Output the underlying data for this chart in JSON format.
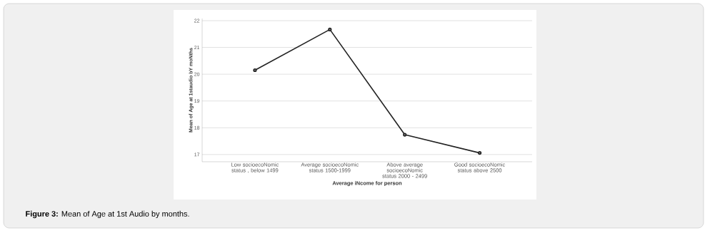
{
  "chart_data": {
    "type": "line",
    "xlabel": "Average iNcome for person",
    "ylabel": "Mean of Age at 1staudio bY moNths",
    "categories": [
      "Low socioecoNomic status , below 1499",
      "Average socioecoNomic status 1500-1999",
      "Above average socioecoNomic status 2000 - 2499",
      "Good socioecoNomic status above 2500"
    ],
    "series": [
      {
        "color": "#222222",
        "values": [
          20.15,
          21.67,
          17.74,
          17.06
        ]
      }
    ],
    "ylim": [
      16.73,
      22.08
    ],
    "yticks": [
      17,
      18,
      19,
      20,
      21,
      22
    ],
    "grid": "y",
    "marker": "circle",
    "line_style": "solid",
    "annotations": [
      "**Figure 3:** Mean of Age at 1st Audio by months."
    ]
  }
}
